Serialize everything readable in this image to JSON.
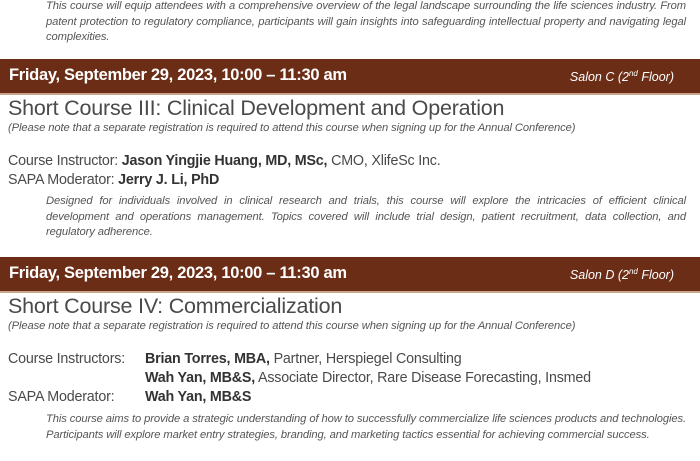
{
  "intro_description": "This course will equip attendees with a comprehensive overview of the legal landscape surrounding the life sciences industry. From patent protection to regulatory compliance, participants will gain insights into safeguarding intellectual property and navigating legal complexities.",
  "colors": {
    "header_bar": "#6b2d16",
    "text": "#4a4a4a"
  },
  "sessions": [
    {
      "datetime": "Friday, September 29, 2023, 10:00 – 11:30 am",
      "room_name": "Salon C (2",
      "room_sup": "nd",
      "room_end": " Floor)",
      "title": "Short Course III: Clinical Development and Operation",
      "note": "(Please note that a separate registration is required to attend this course when signing up for the Annual Conference)",
      "instructor_label": "Course Instructor: ",
      "instructors": [
        {
          "name": "Jason Yingjie Huang, MD, MSc,",
          "role": " CMO, XlifeSc Inc."
        }
      ],
      "moderator_label": "SAPA Moderator: ",
      "moderator": "Jerry J. Li, PhD",
      "description": "Designed for individuals involved in clinical research and trials, this course will explore the intricacies of efficient clinical development and operations management. Topics covered will include trial design, patient recruitment, data collection, and regulatory adherence."
    },
    {
      "datetime": "Friday, September 29, 2023, 10:00 – 11:30 am",
      "room_name": "Salon D (2",
      "room_sup": "nd",
      "room_end": " Floor)",
      "title": "Short Course IV: Commercialization",
      "note": "(Please note that a separate registration is required to attend this course when signing up for the Annual Conference)",
      "instructor_label": "Course Instructors: ",
      "instructors": [
        {
          "name": "Brian Torres, MBA,",
          "role": " Partner, Herspiegel Consulting"
        },
        {
          "name": "Wah Yan, MB&S,",
          "role": " Associate Director, Rare Disease Forecasting, Insmed"
        }
      ],
      "moderator_label": "SAPA Moderator: ",
      "moderator": "Wah Yan, MB&S",
      "description": "This course aims to provide a strategic understanding of how to successfully commercialize life sciences products and technologies. Participants will explore market entry strategies, branding, and marketing tactics essential for achieving commercial success."
    }
  ]
}
